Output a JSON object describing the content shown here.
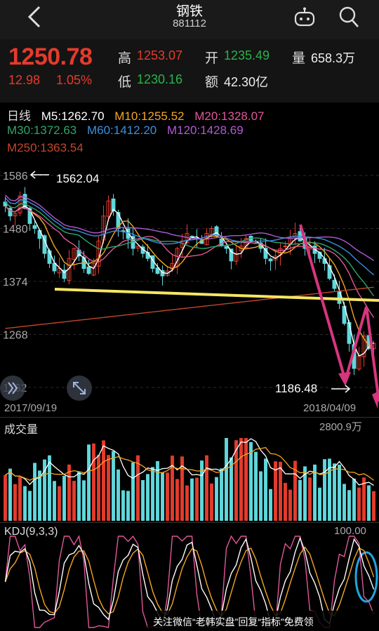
{
  "header": {
    "title": "钢铁",
    "code": "881112",
    "icons": [
      "chevron-left-icon",
      "robot-icon",
      "search-icon"
    ]
  },
  "quote": {
    "price": "1250.78",
    "change": "12.98",
    "change_pct": "1.05%",
    "high_label": "高",
    "high": "1253.07",
    "low_label": "低",
    "low": "1230.16",
    "open_label": "开",
    "open": "1235.49",
    "volume_label": "量",
    "volume": "658.3万",
    "amount_label": "额",
    "amount": "42.30亿"
  },
  "indicators": {
    "period": "日线",
    "ma5": "M5:1262.70",
    "ma10": "M10:1255.52",
    "ma20": "M20:1328.07",
    "ma30": "M30:1372.63",
    "ma60": "M60:1412.20",
    "ma120": "M120:1428.69",
    "ma250": "M250:1363.54"
  },
  "colors": {
    "up": "#e43b2c",
    "down": "#5fd8dc",
    "ma5": "#ffffff",
    "ma10": "#f5a623",
    "ma20": "#e0579a",
    "ma30": "#2fa56a",
    "ma60": "#3b8fe0",
    "ma120": "#b05ad6",
    "ma250": "#c0472a",
    "annotation_line": "#f5e663",
    "annotation_arrow": "#d8357f",
    "annotation_circle": "#1fa6e0"
  },
  "chart_data": [
    {
      "type": "candlestick",
      "x_start": "2017/09/19",
      "x_end": "2018/04/09",
      "y_ticks": [
        "1586",
        "1480",
        "1374",
        "1268",
        "1162"
      ],
      "ylim": [
        1162,
        1586
      ],
      "max_label": "1562.04",
      "min_label": "1186.48",
      "closes": [
        1525,
        1505,
        1510,
        1545,
        1520,
        1490,
        1480,
        1460,
        1430,
        1410,
        1395,
        1400,
        1380,
        1420,
        1440,
        1425,
        1400,
        1390,
        1410,
        1455,
        1505,
        1535,
        1515,
        1480,
        1475,
        1460,
        1440,
        1445,
        1430,
        1420,
        1400,
        1390,
        1385,
        1395,
        1410,
        1440,
        1455,
        1470,
        1460,
        1460,
        1450,
        1470,
        1480,
        1465,
        1445,
        1440,
        1415,
        1430,
        1445,
        1460,
        1455,
        1450,
        1440,
        1420,
        1415,
        1425,
        1440,
        1445,
        1460,
        1470,
        1455,
        1440,
        1445,
        1430,
        1420,
        1410,
        1380,
        1360,
        1330,
        1290,
        1250,
        1200,
        1225,
        1265,
        1240,
        1250
      ]
    },
    {
      "type": "bar",
      "title": "成交量",
      "max_label": "2800.9万",
      "note": "volume bars alternate up/down colors, with two moving-average lines"
    },
    {
      "type": "line",
      "title": "KDJ(9,3,3)",
      "ylim_label": "100.00",
      "series": [
        {
          "name": "K",
          "color": "#ffffff"
        },
        {
          "name": "D",
          "color": "#f5a623"
        },
        {
          "name": "J",
          "color": "#e0579a"
        }
      ]
    }
  ],
  "footer": {
    "text": "关注微信“老韩实盘”回复“指标”免费领"
  }
}
